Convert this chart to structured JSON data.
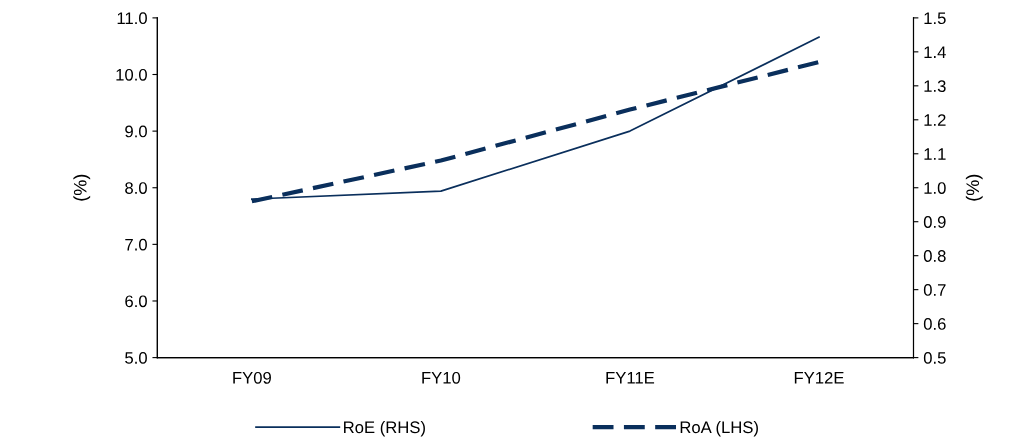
{
  "chart_data": {
    "type": "line",
    "categories": [
      "FY09",
      "FY10",
      "FY11E",
      "FY12E"
    ],
    "ylabel": "(%)",
    "y2label": "(%)",
    "ylim": [
      5.0,
      11.0
    ],
    "yticks": [
      {
        "value": 5,
        "label": "5.0"
      },
      {
        "value": 6,
        "label": "6.0"
      },
      {
        "value": 7,
        "label": "7.0"
      },
      {
        "value": 8,
        "label": "8.0"
      },
      {
        "value": 9,
        "label": "9.0"
      },
      {
        "value": 10,
        "label": "10.0"
      },
      {
        "value": 11,
        "label": "11.0"
      }
    ],
    "y2lim": [
      0.5,
      1.5
    ],
    "y2ticks": [
      0.5,
      0.6,
      0.7,
      0.8,
      0.9,
      {
        "value": 1,
        "label": "1.0"
      },
      1.1,
      1.2,
      1.3,
      1.4,
      1.5
    ],
    "series": [
      {
        "name": "RoE (RHS)",
        "color": "#0a2f5c",
        "values": [
          7.8,
          7.94,
          9.0,
          10.66
        ],
        "line_style": "solid"
      },
      {
        "name": "RoA (LHS)",
        "color": "#0a2f5c",
        "values": [
          0.96,
          1.08,
          1.23,
          1.37
        ],
        "axis": "y2",
        "line_style": "dashed"
      }
    ],
    "legend": "bottom",
    "grid": false
  }
}
